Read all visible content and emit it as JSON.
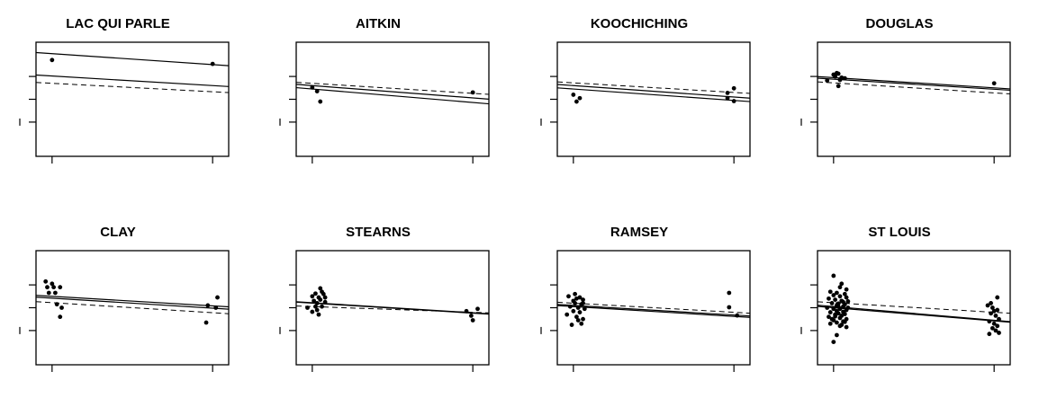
{
  "figure": {
    "layout": {
      "rows": 2,
      "cols": 4
    },
    "x_range": [
      -0.1,
      1.1
    ],
    "y_range": [
      -1.5,
      3.5
    ],
    "x_ticks": [
      0,
      1
    ],
    "y_ticks": [
      0,
      1,
      2
    ],
    "tick_labels_shown": false,
    "legend": "none",
    "grid": false
  },
  "chart_data": [
    {
      "type": "scatter",
      "title": "LAC QUI PARLE",
      "points": [
        [
          0.0,
          2.72
        ],
        [
          1.0,
          2.55
        ]
      ],
      "lines": [
        {
          "style": "solid",
          "y_at_0": 3.0,
          "y_at_1": 2.52
        },
        {
          "style": "solid",
          "y_at_0": 2.02,
          "y_at_1": 1.6
        },
        {
          "style": "dashed",
          "y_at_0": 1.7,
          "y_at_1": 1.33
        }
      ]
    },
    {
      "type": "scatter",
      "title": "AITKIN",
      "points": [
        [
          0.0,
          1.52
        ],
        [
          0.03,
          1.35
        ],
        [
          0.05,
          0.9
        ],
        [
          1.0,
          1.3
        ]
      ],
      "lines": [
        {
          "style": "dashed",
          "y_at_0": 1.7,
          "y_at_1": 1.26
        },
        {
          "style": "solid",
          "y_at_0": 1.6,
          "y_at_1": 1.06
        },
        {
          "style": "solid",
          "y_at_0": 1.45,
          "y_at_1": 0.86
        }
      ]
    },
    {
      "type": "scatter",
      "title": "KOOCHICHING",
      "points": [
        [
          0.0,
          1.2
        ],
        [
          0.04,
          1.05
        ],
        [
          0.02,
          0.9
        ],
        [
          0.96,
          1.28
        ],
        [
          0.96,
          1.05
        ],
        [
          1.0,
          1.48
        ],
        [
          1.0,
          0.92
        ]
      ],
      "lines": [
        {
          "style": "dashed",
          "y_at_0": 1.72,
          "y_at_1": 1.3
        },
        {
          "style": "solid",
          "y_at_0": 1.6,
          "y_at_1": 1.1
        },
        {
          "style": "solid",
          "y_at_0": 1.45,
          "y_at_1": 0.95
        }
      ]
    },
    {
      "type": "scatter",
      "title": "DOUGLAS",
      "points": [
        [
          0.0,
          2.08
        ],
        [
          0.02,
          2.15
        ],
        [
          0.03,
          2.12
        ],
        [
          0.01,
          2.0
        ],
        [
          0.05,
          1.95
        ],
        [
          0.04,
          1.85
        ],
        [
          0.07,
          1.92
        ],
        [
          -0.04,
          1.82
        ],
        [
          0.03,
          1.58
        ],
        [
          1.0,
          1.7
        ]
      ],
      "lines": [
        {
          "style": "solid",
          "y_at_0": 1.95,
          "y_at_1": 1.5
        },
        {
          "style": "solid",
          "y_at_0": 1.88,
          "y_at_1": 1.44
        },
        {
          "style": "dashed",
          "y_at_0": 1.72,
          "y_at_1": 1.28
        }
      ]
    },
    {
      "type": "scatter",
      "title": "CLAY",
      "points": [
        [
          -0.04,
          2.15
        ],
        [
          0.0,
          2.05
        ],
        [
          -0.03,
          1.9
        ],
        [
          0.01,
          1.9
        ],
        [
          0.05,
          1.9
        ],
        [
          -0.02,
          1.65
        ],
        [
          0.02,
          1.65
        ],
        [
          0.03,
          1.15
        ],
        [
          0.06,
          1.0
        ],
        [
          0.05,
          0.6
        ],
        [
          0.97,
          1.1
        ],
        [
          1.02,
          1.0
        ],
        [
          1.03,
          1.45
        ],
        [
          0.96,
          0.35
        ]
      ],
      "lines": [
        {
          "style": "solid",
          "y_at_0": 1.5,
          "y_at_1": 1.08
        },
        {
          "style": "solid",
          "y_at_0": 1.42,
          "y_at_1": 0.98
        },
        {
          "style": "dashed",
          "y_at_0": 1.22,
          "y_at_1": 0.78
        }
      ]
    },
    {
      "type": "scatter",
      "title": "STEARNS",
      "points": [
        [
          0.0,
          1.5
        ],
        [
          0.02,
          1.62
        ],
        [
          0.04,
          1.45
        ],
        [
          0.01,
          1.3
        ],
        [
          0.05,
          1.35
        ],
        [
          0.03,
          1.2
        ],
        [
          0.07,
          1.6
        ],
        [
          0.06,
          1.7
        ],
        [
          0.08,
          1.45
        ],
        [
          0.02,
          1.05
        ],
        [
          0.06,
          1.05
        ],
        [
          -0.03,
          1.0
        ],
        [
          0.0,
          0.82
        ],
        [
          0.04,
          0.7
        ],
        [
          0.05,
          1.85
        ],
        [
          0.08,
          1.25
        ],
        [
          0.03,
          0.9
        ],
        [
          0.96,
          0.85
        ],
        [
          0.99,
          0.65
        ],
        [
          1.0,
          0.45
        ],
        [
          1.03,
          0.95
        ]
      ],
      "lines": [
        {
          "style": "solid",
          "y_at_0": 1.22,
          "y_at_1": 0.78
        },
        {
          "style": "solid",
          "y_at_0": 1.2,
          "y_at_1": 0.76
        },
        {
          "style": "dashed",
          "y_at_0": 1.05,
          "y_at_1": 0.8
        }
      ]
    },
    {
      "type": "scatter",
      "title": "RAMSEY",
      "points": [
        [
          -0.03,
          1.5
        ],
        [
          0.0,
          1.3
        ],
        [
          0.02,
          1.4
        ],
        [
          0.04,
          1.45
        ],
        [
          0.06,
          1.35
        ],
        [
          0.01,
          1.2
        ],
        [
          0.05,
          1.15
        ],
        [
          -0.02,
          1.05
        ],
        [
          0.03,
          1.0
        ],
        [
          0.07,
          0.95
        ],
        [
          0.0,
          0.85
        ],
        [
          0.04,
          0.8
        ],
        [
          -0.04,
          0.7
        ],
        [
          0.02,
          0.6
        ],
        [
          0.06,
          0.5
        ],
        [
          0.03,
          0.45
        ],
        [
          -0.01,
          0.25
        ],
        [
          0.05,
          0.3
        ],
        [
          0.01,
          1.6
        ],
        [
          0.06,
          1.2
        ],
        [
          0.97,
          1.65
        ],
        [
          0.97,
          1.02
        ],
        [
          1.02,
          0.66
        ]
      ],
      "lines": [
        {
          "style": "solid",
          "y_at_0": 1.1,
          "y_at_1": 0.68
        },
        {
          "style": "solid",
          "y_at_0": 1.05,
          "y_at_1": 0.62
        },
        {
          "style": "dashed",
          "y_at_0": 1.2,
          "y_at_1": 0.8
        }
      ]
    },
    {
      "type": "scatter",
      "title": "ST LOUIS",
      "points": [
        [
          0.0,
          2.4
        ],
        [
          0.05,
          2.05
        ],
        [
          0.04,
          1.9
        ],
        [
          0.08,
          1.8
        ],
        [
          -0.02,
          1.7
        ],
        [
          0.02,
          1.65
        ],
        [
          0.07,
          1.6
        ],
        [
          0.0,
          1.55
        ],
        [
          0.04,
          1.5
        ],
        [
          0.08,
          1.45
        ],
        [
          -0.03,
          1.4
        ],
        [
          0.01,
          1.35
        ],
        [
          0.05,
          1.3
        ],
        [
          0.09,
          1.28
        ],
        [
          -0.01,
          1.2
        ],
        [
          0.03,
          1.18
        ],
        [
          0.07,
          1.15
        ],
        [
          0.02,
          1.1
        ],
        [
          0.06,
          1.05
        ],
        [
          -0.04,
          1.0
        ],
        [
          0.0,
          0.98
        ],
        [
          0.04,
          0.95
        ],
        [
          0.08,
          0.9
        ],
        [
          0.02,
          0.85
        ],
        [
          0.06,
          0.82
        ],
        [
          -0.02,
          0.8
        ],
        [
          0.03,
          0.75
        ],
        [
          0.07,
          0.72
        ],
        [
          0.01,
          0.7
        ],
        [
          0.05,
          0.65
        ],
        [
          -0.03,
          0.6
        ],
        [
          0.04,
          0.55
        ],
        [
          0.08,
          0.5
        ],
        [
          0.0,
          0.45
        ],
        [
          0.06,
          0.4
        ],
        [
          0.02,
          0.35
        ],
        [
          -0.02,
          0.3
        ],
        [
          0.05,
          0.25
        ],
        [
          0.0,
          0.95
        ],
        [
          0.03,
          1.05
        ],
        [
          0.06,
          1.25
        ],
        [
          0.01,
          0.62
        ],
        [
          0.07,
          0.38
        ],
        [
          0.09,
          1.0
        ],
        [
          -0.01,
          0.5
        ],
        [
          0.04,
          0.2
        ],
        [
          0.08,
          0.15
        ],
        [
          0.02,
          -0.2
        ],
        [
          0.0,
          -0.5
        ],
        [
          0.96,
          1.1
        ],
        [
          0.99,
          1.0
        ],
        [
          1.02,
          0.9
        ],
        [
          0.98,
          0.75
        ],
        [
          1.01,
          0.65
        ],
        [
          1.03,
          0.5
        ],
        [
          0.97,
          0.4
        ],
        [
          1.0,
          0.3
        ],
        [
          1.02,
          0.2
        ],
        [
          0.99,
          0.1
        ],
        [
          1.01,
          0.0
        ],
        [
          0.97,
          -0.15
        ],
        [
          1.03,
          -0.1
        ],
        [
          1.0,
          0.85
        ],
        [
          0.98,
          1.2
        ],
        [
          1.02,
          1.45
        ]
      ],
      "lines": [
        {
          "style": "solid",
          "y_at_0": 1.05,
          "y_at_1": 0.45
        },
        {
          "style": "solid",
          "y_at_0": 1.0,
          "y_at_1": 0.42
        },
        {
          "style": "dashed",
          "y_at_0": 1.22,
          "y_at_1": 0.8
        }
      ]
    }
  ]
}
